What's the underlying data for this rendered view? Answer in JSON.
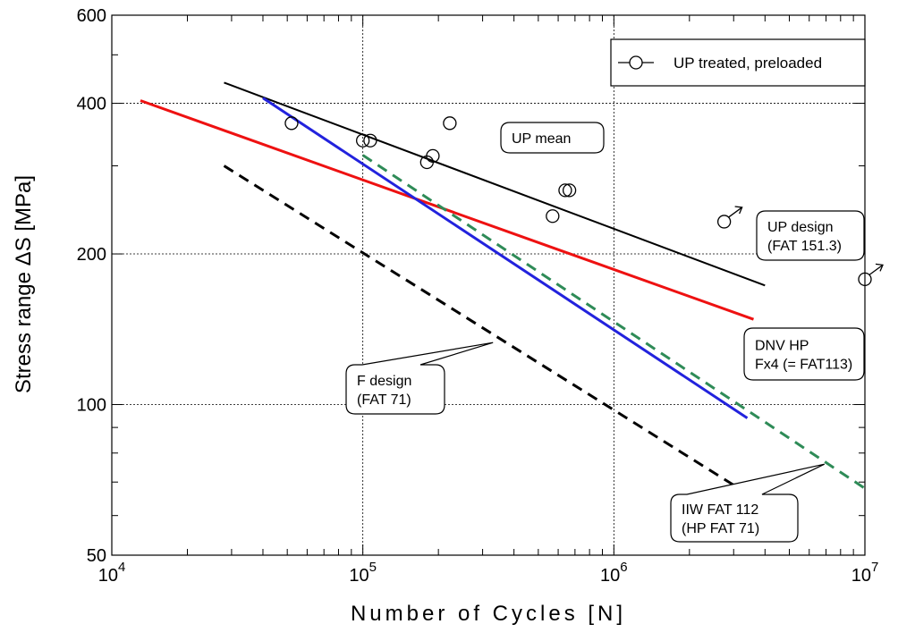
{
  "chart_data": {
    "type": "scatter",
    "xlabel": "Number of Cycles [N]",
    "ylabel": "Stress range  ΔS [MPa]",
    "x_scale": "log",
    "y_scale": "log",
    "xlim": [
      10000,
      10000000
    ],
    "ylim": [
      50,
      600
    ],
    "x_ticks": [
      {
        "value": 10000,
        "base": "10",
        "exp": "4"
      },
      {
        "value": 100000,
        "base": "10",
        "exp": "5"
      },
      {
        "value": 1000000,
        "base": "10",
        "exp": "6"
      },
      {
        "value": 10000000,
        "base": "10",
        "exp": "7"
      }
    ],
    "y_ticks": [
      {
        "value": 50,
        "label": "50"
      },
      {
        "value": 100,
        "label": "100"
      },
      {
        "value": 200,
        "label": "200"
      },
      {
        "value": 400,
        "label": "400"
      },
      {
        "value": 600,
        "label": "600"
      }
    ],
    "grid": true,
    "legend": {
      "position": "top-right",
      "entries": [
        "UP treated, preloaded"
      ]
    },
    "series": [
      {
        "name": "UP treated, preloaded",
        "kind": "points",
        "color": "#000000",
        "points": [
          [
            52000,
            365
          ],
          [
            100000,
            337
          ],
          [
            107000,
            337
          ],
          [
            180000,
            305
          ],
          [
            190000,
            314
          ],
          [
            222000,
            365
          ],
          [
            570000,
            238
          ],
          [
            640000,
            268
          ],
          [
            665000,
            268
          ],
          [
            2750000,
            232
          ],
          [
            10000000,
            178
          ]
        ],
        "runouts": [
          [
            2750000,
            232
          ],
          [
            10000000,
            178
          ]
        ]
      },
      {
        "kind": "line",
        "color": "#000000",
        "style": "solid",
        "points": [
          [
            28000,
            440
          ],
          [
            4000000,
            173
          ]
        ]
      },
      {
        "kind": "line",
        "color": "#ee1111",
        "style": "solid",
        "points": [
          [
            13000,
            405
          ],
          [
            3600000,
            148
          ]
        ]
      },
      {
        "kind": "line",
        "color": "#2222dd",
        "style": "solid",
        "points": [
          [
            40000,
            410
          ],
          [
            3400000,
            94
          ]
        ]
      },
      {
        "kind": "line",
        "color": "#2e8b57",
        "style": "dashed",
        "points": [
          [
            100000,
            315
          ],
          [
            10000000,
            68
          ]
        ]
      },
      {
        "kind": "line",
        "color": "#000000",
        "style": "dashed",
        "points": [
          [
            28000,
            300
          ],
          [
            3300000,
            67
          ]
        ]
      }
    ],
    "annotations": [
      {
        "lines": [
          "UP mean"
        ],
        "target": [
          290000,
          296
        ]
      },
      {
        "lines": [
          "UP design",
          "(FAT 151.3)"
        ],
        "target": [
          2430000,
          161
        ]
      },
      {
        "lines": [
          "DNV HP",
          "Fx4 (= FAT113)"
        ],
        "target": [
          2400000,
          106
        ]
      },
      {
        "lines": [
          "F design",
          "(FAT 71)"
        ],
        "target": [
          330000,
          133
        ]
      },
      {
        "lines": [
          "IIW FAT 112",
          "(HP FAT 71)"
        ],
        "target": [
          6900000,
          76
        ]
      }
    ]
  }
}
